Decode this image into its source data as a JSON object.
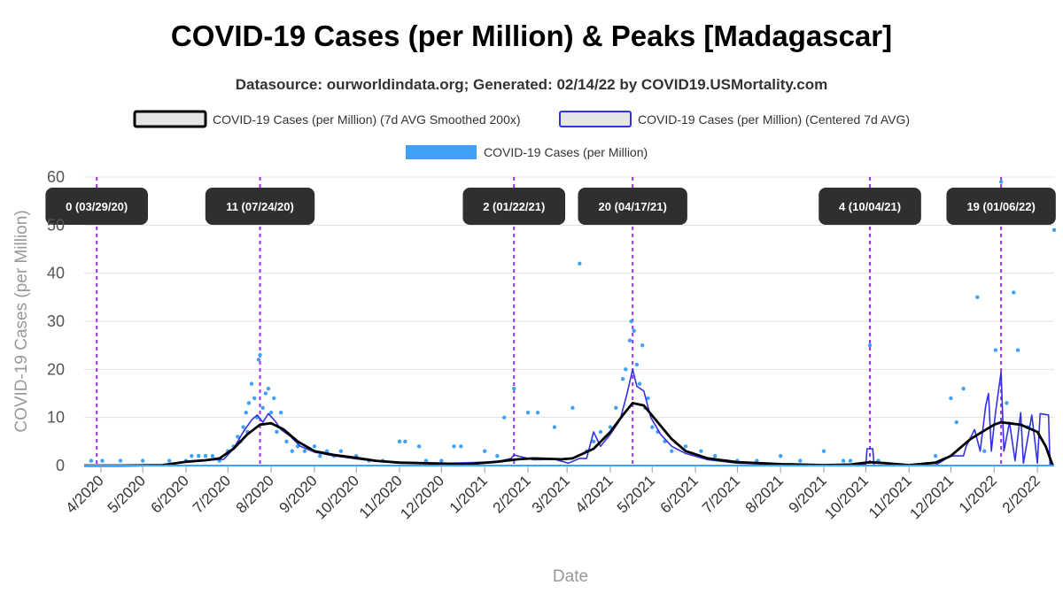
{
  "chart_data": {
    "type": "line",
    "title": "COVID-19 Cases (per Million) & Peaks [Madagascar]",
    "subtitle": "Datasource: ourworldindata.org; Generated: 02/14/22 by COVID19.USMortality.com",
    "xlabel": "Date",
    "ylabel": "COVID-19 Cases (per Million)",
    "ylim": [
      0,
      60
    ],
    "y_ticks": [
      "0",
      "10",
      "20",
      "30",
      "40",
      "50",
      "60"
    ],
    "x_ticks": [
      "4/2020",
      "5/2020",
      "6/2020",
      "7/2020",
      "8/2020",
      "9/2020",
      "10/2020",
      "11/2020",
      "12/2020",
      "1/2021",
      "2/2021",
      "3/2021",
      "4/2021",
      "5/2021",
      "6/2021",
      "7/2021",
      "8/2021",
      "9/2021",
      "10/2021",
      "11/2021",
      "12/2021",
      "1/2022",
      "2/2022"
    ],
    "x_range": [
      "2020-03-20",
      "2022-02-13"
    ],
    "grid": true,
    "legend_position": "top",
    "colors": {
      "smoothed": "#000000",
      "centered": "#3333dd",
      "daily": "#3fa2f7",
      "peak_line": "#9933ee",
      "peak_box": "#2f2f2f"
    },
    "series": [
      {
        "name": "COVID-19 Cases (per Million) (7d AVG Smoothed 200x)",
        "style": "line",
        "points": [
          [
            "2020-03-20",
            0
          ],
          [
            "2020-04-15",
            0
          ],
          [
            "2020-05-15",
            0.1
          ],
          [
            "2020-06-01",
            0.8
          ],
          [
            "2020-06-15",
            1.1
          ],
          [
            "2020-06-25",
            1.5
          ],
          [
            "2020-07-05",
            3.5
          ],
          [
            "2020-07-15",
            6.5
          ],
          [
            "2020-07-24",
            8.5
          ],
          [
            "2020-08-01",
            8.8
          ],
          [
            "2020-08-10",
            7.5
          ],
          [
            "2020-08-20",
            5.0
          ],
          [
            "2020-09-01",
            3.0
          ],
          [
            "2020-09-15",
            2.2
          ],
          [
            "2020-10-01",
            1.6
          ],
          [
            "2020-10-15",
            1.0
          ],
          [
            "2020-11-01",
            0.6
          ],
          [
            "2020-12-01",
            0.4
          ],
          [
            "2020-12-20",
            0.3
          ],
          [
            "2021-01-10",
            0.8
          ],
          [
            "2021-01-25",
            1.3
          ],
          [
            "2021-02-05",
            1.5
          ],
          [
            "2021-02-25",
            1.3
          ],
          [
            "2021-03-05",
            1.5
          ],
          [
            "2021-03-20",
            3.5
          ],
          [
            "2021-04-01",
            7.0
          ],
          [
            "2021-04-10",
            10.5
          ],
          [
            "2021-04-17",
            13.0
          ],
          [
            "2021-04-25",
            12.5
          ],
          [
            "2021-05-05",
            9.0
          ],
          [
            "2021-05-15",
            5.5
          ],
          [
            "2021-05-25",
            3.0
          ],
          [
            "2021-06-10",
            1.5
          ],
          [
            "2021-07-01",
            0.7
          ],
          [
            "2021-08-01",
            0.3
          ],
          [
            "2021-09-01",
            0.1
          ],
          [
            "2021-09-20",
            0.2
          ],
          [
            "2021-10-04",
            0.7
          ],
          [
            "2021-10-15",
            0.5
          ],
          [
            "2021-11-01",
            0.1
          ],
          [
            "2021-11-20",
            0.6
          ],
          [
            "2021-12-01",
            2.0
          ],
          [
            "2021-12-15",
            5.5
          ],
          [
            "2022-01-01",
            8.5
          ],
          [
            "2022-01-06",
            9.0
          ],
          [
            "2022-01-20",
            8.5
          ],
          [
            "2022-02-01",
            7.0
          ],
          [
            "2022-02-07",
            4.0
          ],
          [
            "2022-02-12",
            0
          ]
        ]
      },
      {
        "name": "COVID-19 Cases (per Million) (Centered 7d AVG)",
        "style": "line",
        "points": [
          [
            "2020-03-20",
            0
          ],
          [
            "2020-05-15",
            0.1
          ],
          [
            "2020-06-10",
            1.0
          ],
          [
            "2020-06-28",
            1.3
          ],
          [
            "2020-07-05",
            3.5
          ],
          [
            "2020-07-12",
            7.0
          ],
          [
            "2020-07-18",
            9.5
          ],
          [
            "2020-07-22",
            10.5
          ],
          [
            "2020-07-26",
            9.0
          ],
          [
            "2020-07-30",
            10.8
          ],
          [
            "2020-08-04",
            9.2
          ],
          [
            "2020-08-08",
            7.5
          ],
          [
            "2020-08-15",
            6.0
          ],
          [
            "2020-08-22",
            4.0
          ],
          [
            "2020-09-01",
            2.8
          ],
          [
            "2020-09-15",
            2.0
          ],
          [
            "2020-10-01",
            1.4
          ],
          [
            "2020-10-15",
            0.9
          ],
          [
            "2020-11-01",
            0.5
          ],
          [
            "2020-12-01",
            0.4
          ],
          [
            "2021-01-10",
            0.8
          ],
          [
            "2021-01-20",
            1.5
          ],
          [
            "2021-01-22",
            2.2
          ],
          [
            "2021-02-05",
            1.2
          ],
          [
            "2021-02-20",
            1.3
          ],
          [
            "2021-03-02",
            0.5
          ],
          [
            "2021-03-10",
            1.5
          ],
          [
            "2021-03-15",
            1.5
          ],
          [
            "2021-03-20",
            7.0
          ],
          [
            "2021-03-25",
            4.0
          ],
          [
            "2021-04-01",
            6.5
          ],
          [
            "2021-04-08",
            9.5
          ],
          [
            "2021-04-13",
            15.0
          ],
          [
            "2021-04-17",
            20.0
          ],
          [
            "2021-04-20",
            16.5
          ],
          [
            "2021-04-25",
            15.5
          ],
          [
            "2021-04-30",
            10.0
          ],
          [
            "2021-05-07",
            6.5
          ],
          [
            "2021-05-15",
            4.0
          ],
          [
            "2021-05-25",
            2.5
          ],
          [
            "2021-06-10",
            1.2
          ],
          [
            "2021-07-01",
            0.5
          ],
          [
            "2021-08-01",
            0.2
          ],
          [
            "2021-09-01",
            0.1
          ],
          [
            "2021-10-01",
            0.2
          ],
          [
            "2021-10-02",
            3.5
          ],
          [
            "2021-10-06",
            3.5
          ],
          [
            "2021-10-07",
            0
          ],
          [
            "2021-11-20",
            0.1
          ],
          [
            "2021-12-01",
            2.0
          ],
          [
            "2021-12-10",
            2.0
          ],
          [
            "2021-12-12",
            4.0
          ],
          [
            "2021-12-18",
            7.5
          ],
          [
            "2021-12-22",
            3.0
          ],
          [
            "2021-12-26",
            12.5
          ],
          [
            "2021-12-28",
            15.0
          ],
          [
            "2021-12-30",
            3.0
          ],
          [
            "2022-01-02",
            11.0
          ],
          [
            "2022-01-06",
            19.5
          ],
          [
            "2022-01-08",
            3.0
          ],
          [
            "2022-01-12",
            9.0
          ],
          [
            "2022-01-16",
            1.0
          ],
          [
            "2022-01-20",
            11.0
          ],
          [
            "2022-01-22",
            0.5
          ],
          [
            "2022-01-28",
            10.5
          ],
          [
            "2022-02-01",
            0.5
          ],
          [
            "2022-02-03",
            10.8
          ],
          [
            "2022-02-09",
            10.5
          ],
          [
            "2022-02-10",
            0
          ]
        ]
      },
      {
        "name": "COVID-19 Cases (per Million)",
        "style": "dots",
        "points": [
          [
            "2020-03-25",
            1
          ],
          [
            "2020-04-02",
            1
          ],
          [
            "2020-04-15",
            1
          ],
          [
            "2020-05-01",
            1
          ],
          [
            "2020-05-20",
            1
          ],
          [
            "2020-06-01",
            1
          ],
          [
            "2020-06-05",
            2
          ],
          [
            "2020-06-10",
            2
          ],
          [
            "2020-06-15",
            2
          ],
          [
            "2020-06-20",
            2
          ],
          [
            "2020-06-25",
            1
          ],
          [
            "2020-07-01",
            3
          ],
          [
            "2020-07-05",
            4
          ],
          [
            "2020-07-08",
            6
          ],
          [
            "2020-07-10",
            5
          ],
          [
            "2020-07-12",
            8
          ],
          [
            "2020-07-14",
            11
          ],
          [
            "2020-07-15",
            7
          ],
          [
            "2020-07-16",
            13
          ],
          [
            "2020-07-18",
            17
          ],
          [
            "2020-07-20",
            14
          ],
          [
            "2020-07-22",
            10
          ],
          [
            "2020-07-23",
            22
          ],
          [
            "2020-07-24",
            23
          ],
          [
            "2020-07-26",
            12
          ],
          [
            "2020-07-28",
            15
          ],
          [
            "2020-07-30",
            16
          ],
          [
            "2020-08-01",
            11
          ],
          [
            "2020-08-03",
            14
          ],
          [
            "2020-08-05",
            7
          ],
          [
            "2020-08-08",
            11
          ],
          [
            "2020-08-12",
            5
          ],
          [
            "2020-08-16",
            3
          ],
          [
            "2020-08-20",
            4
          ],
          [
            "2020-08-25",
            3
          ],
          [
            "2020-09-01",
            4
          ],
          [
            "2020-09-05",
            2
          ],
          [
            "2020-09-10",
            3
          ],
          [
            "2020-09-15",
            2
          ],
          [
            "2020-09-20",
            3
          ],
          [
            "2020-10-01",
            2
          ],
          [
            "2020-10-10",
            1
          ],
          [
            "2020-10-20",
            1
          ],
          [
            "2020-11-01",
            5
          ],
          [
            "2020-11-05",
            5
          ],
          [
            "2020-11-15",
            4
          ],
          [
            "2020-11-20",
            1
          ],
          [
            "2020-12-01",
            1
          ],
          [
            "2020-12-10",
            4
          ],
          [
            "2020-12-15",
            4
          ],
          [
            "2021-01-01",
            3
          ],
          [
            "2021-01-10",
            2
          ],
          [
            "2021-01-15",
            10
          ],
          [
            "2021-01-22",
            16
          ],
          [
            "2021-02-01",
            11
          ],
          [
            "2021-02-08",
            11
          ],
          [
            "2021-02-20",
            8
          ],
          [
            "2021-03-05",
            12
          ],
          [
            "2021-03-10",
            42
          ],
          [
            "2021-03-15",
            3
          ],
          [
            "2021-03-20",
            5
          ],
          [
            "2021-03-25",
            7
          ],
          [
            "2021-04-01",
            8
          ],
          [
            "2021-04-05",
            12
          ],
          [
            "2021-04-10",
            18
          ],
          [
            "2021-04-12",
            20
          ],
          [
            "2021-04-15",
            26
          ],
          [
            "2021-04-16",
            30
          ],
          [
            "2021-04-18",
            28
          ],
          [
            "2021-04-20",
            21
          ],
          [
            "2021-04-22",
            17
          ],
          [
            "2021-04-24",
            25
          ],
          [
            "2021-04-26",
            12
          ],
          [
            "2021-04-28",
            14
          ],
          [
            "2021-05-01",
            8
          ],
          [
            "2021-05-05",
            7
          ],
          [
            "2021-05-10",
            5
          ],
          [
            "2021-05-15",
            3
          ],
          [
            "2021-05-25",
            4
          ],
          [
            "2021-06-05",
            3
          ],
          [
            "2021-06-15",
            2
          ],
          [
            "2021-07-01",
            1
          ],
          [
            "2021-07-15",
            1
          ],
          [
            "2021-08-01",
            2
          ],
          [
            "2021-08-15",
            1
          ],
          [
            "2021-09-01",
            3
          ],
          [
            "2021-09-15",
            1
          ],
          [
            "2021-09-20",
            1
          ],
          [
            "2021-10-04",
            25
          ],
          [
            "2021-10-10",
            1
          ],
          [
            "2021-11-20",
            2
          ],
          [
            "2021-12-01",
            14
          ],
          [
            "2021-12-05",
            9
          ],
          [
            "2021-12-10",
            16
          ],
          [
            "2021-12-20",
            35
          ],
          [
            "2021-12-25",
            3
          ],
          [
            "2022-01-02",
            24
          ],
          [
            "2022-01-06",
            59
          ],
          [
            "2022-01-10",
            13
          ],
          [
            "2022-01-15",
            36
          ],
          [
            "2022-01-18",
            24
          ],
          [
            "2022-01-25",
            8
          ],
          [
            "2022-02-13",
            49
          ]
        ]
      }
    ],
    "peaks": [
      {
        "label": "0 (03/29/20)",
        "date": "2020-03-29"
      },
      {
        "label": "11 (07/24/20)",
        "date": "2020-07-24"
      },
      {
        "label": "2 (01/22/21)",
        "date": "2021-01-22"
      },
      {
        "label": "20 (04/17/21)",
        "date": "2021-04-17"
      },
      {
        "label": "4 (10/04/21)",
        "date": "2021-10-04"
      },
      {
        "label": "19 (01/06/22)",
        "date": "2022-01-06"
      }
    ]
  }
}
